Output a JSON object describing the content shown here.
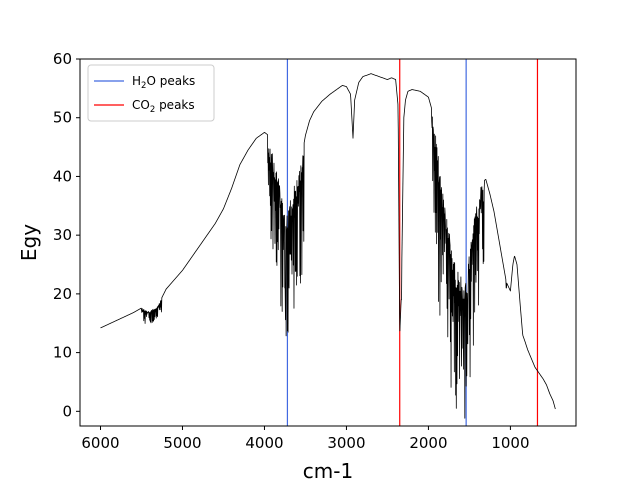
{
  "chart_data": {
    "type": "line",
    "xlabel": "cm-1",
    "ylabel": "Egy",
    "xlim": [
      6250,
      200
    ],
    "ylim": [
      -2.5,
      60
    ],
    "x_ticks": [
      6000,
      5000,
      4000,
      3000,
      2000,
      1000
    ],
    "y_ticks": [
      0,
      10,
      20,
      30,
      40,
      50,
      60
    ],
    "x_reversed": true,
    "grid": false,
    "legend": {
      "placement": "top-left",
      "entries": [
        {
          "base": "H",
          "sub1": "2",
          "rest": "O peaks",
          "color": "#4169e1"
        },
        {
          "base": "CO",
          "sub1": "2",
          "rest": " peaks",
          "color": "#ff0000"
        }
      ]
    },
    "spectrum": {
      "color": "#000000",
      "anchors": [
        [
          6000,
          14.2
        ],
        [
          5800,
          15.5
        ],
        [
          5600,
          16.8
        ],
        [
          5500,
          17.6
        ],
        [
          5400,
          17.0
        ],
        [
          5300,
          18.0
        ],
        [
          5200,
          20.8
        ],
        [
          5000,
          24.0
        ],
        [
          4800,
          28.0
        ],
        [
          4600,
          32.0
        ],
        [
          4500,
          34.5
        ],
        [
          4400,
          38.0
        ],
        [
          4300,
          42.0
        ],
        [
          4200,
          44.5
        ],
        [
          4100,
          46.5
        ],
        [
          4000,
          47.5
        ],
        [
          3950,
          47.0
        ],
        [
          3900,
          44.0
        ],
        [
          3850,
          41.0
        ],
        [
          3800,
          38.0
        ],
        [
          3750,
          33.0
        ],
        [
          3700,
          35.0
        ],
        [
          3650,
          38.0
        ],
        [
          3600,
          40.0
        ],
        [
          3550,
          43.0
        ],
        [
          3500,
          47.0
        ],
        [
          3450,
          49.5
        ],
        [
          3400,
          51.0
        ],
        [
          3300,
          52.8
        ],
        [
          3200,
          54.0
        ],
        [
          3100,
          55.0
        ],
        [
          3050,
          55.5
        ],
        [
          3000,
          55.3
        ],
        [
          2950,
          54.0
        ],
        [
          2920,
          46.5
        ],
        [
          2900,
          53.0
        ],
        [
          2850,
          56.0
        ],
        [
          2800,
          57.0
        ],
        [
          2700,
          57.5
        ],
        [
          2600,
          57.0
        ],
        [
          2500,
          56.5
        ],
        [
          2450,
          56.8
        ],
        [
          2400,
          56.5
        ],
        [
          2370,
          52.0
        ],
        [
          2350,
          13.0
        ],
        [
          2330,
          20.0
        ],
        [
          2300,
          50.0
        ],
        [
          2280,
          53.0
        ],
        [
          2250,
          54.5
        ],
        [
          2200,
          54.8
        ],
        [
          2100,
          54.5
        ],
        [
          2000,
          53.5
        ],
        [
          1950,
          51.0
        ],
        [
          1900,
          46.0
        ],
        [
          1850,
          40.0
        ],
        [
          1800,
          36.0
        ],
        [
          1750,
          31.0
        ],
        [
          1700,
          27.0
        ],
        [
          1650,
          24.0
        ],
        [
          1600,
          23.0
        ],
        [
          1550,
          22.0
        ],
        [
          1520,
          24.0
        ],
        [
          1500,
          27.0
        ],
        [
          1450,
          32.0
        ],
        [
          1400,
          36.0
        ],
        [
          1350,
          39.0
        ],
        [
          1300,
          39.5
        ],
        [
          1250,
          37.0
        ],
        [
          1200,
          34.0
        ],
        [
          1150,
          30.0
        ],
        [
          1100,
          26.0
        ],
        [
          1050,
          22.0
        ],
        [
          1000,
          20.5
        ],
        [
          970,
          25.0
        ],
        [
          950,
          26.5
        ],
        [
          920,
          25.0
        ],
        [
          880,
          18.0
        ],
        [
          850,
          13.0
        ],
        [
          820,
          11.8
        ],
        [
          790,
          10.5
        ],
        [
          760,
          9.5
        ],
        [
          730,
          8.5
        ],
        [
          700,
          7.5
        ],
        [
          650,
          6.5
        ],
        [
          600,
          5.5
        ],
        [
          560,
          4.5
        ],
        [
          520,
          3.0
        ],
        [
          480,
          1.8
        ],
        [
          450,
          0.3
        ]
      ],
      "absorption_bands": [
        {
          "from": 3960,
          "to": 3520,
          "depth": 22,
          "seed": 3
        },
        {
          "from": 1960,
          "to": 1320,
          "depth": 26,
          "seed": 7
        },
        {
          "from": 5500,
          "to": 5250,
          "depth": 2.5,
          "seed": 11
        }
      ],
      "dips": [
        {
          "x": 3750,
          "y": 21.0
        },
        {
          "x": 3700,
          "y": 21.0
        },
        {
          "x": 3600,
          "y": 23.0
        },
        {
          "x": 1520,
          "y": 11.5
        },
        {
          "x": 1600,
          "y": 15.0
        },
        {
          "x": 1050,
          "y": 21.0
        },
        {
          "x": 2330,
          "y": 19.0
        }
      ]
    },
    "vlines": [
      {
        "x": 3720,
        "color": "#4169e1"
      },
      {
        "x": 2350,
        "color": "#ff0000"
      },
      {
        "x": 1540,
        "color": "#4169e1"
      },
      {
        "x": 670,
        "color": "#ff0000"
      }
    ]
  }
}
